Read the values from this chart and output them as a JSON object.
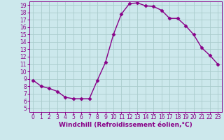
{
  "x": [
    0,
    1,
    2,
    3,
    4,
    5,
    6,
    7,
    8,
    9,
    10,
    11,
    12,
    13,
    14,
    15,
    16,
    17,
    18,
    19,
    20,
    21,
    22,
    23
  ],
  "y": [
    8.8,
    8.0,
    7.7,
    7.3,
    6.5,
    6.3,
    6.3,
    6.3,
    8.8,
    11.2,
    15.0,
    17.8,
    19.2,
    19.3,
    18.9,
    18.8,
    18.3,
    17.2,
    17.2,
    16.2,
    15.0,
    13.2,
    12.2,
    11.0
  ],
  "line_color": "#880088",
  "marker": "D",
  "marker_size": 2.5,
  "bg_color": "#cce8ec",
  "grid_color": "#aacccc",
  "xlabel": "Windchill (Refroidissement éolien,°C)",
  "xlim": [
    -0.5,
    23.5
  ],
  "ylim": [
    4.5,
    19.5
  ],
  "xticks": [
    0,
    1,
    2,
    3,
    4,
    5,
    6,
    7,
    8,
    9,
    10,
    11,
    12,
    13,
    14,
    15,
    16,
    17,
    18,
    19,
    20,
    21,
    22,
    23
  ],
  "yticks": [
    5,
    6,
    7,
    8,
    9,
    10,
    11,
    12,
    13,
    14,
    15,
    16,
    17,
    18,
    19
  ],
  "xlabel_fontsize": 6.5,
  "tick_fontsize": 5.5,
  "line_width": 1.0
}
